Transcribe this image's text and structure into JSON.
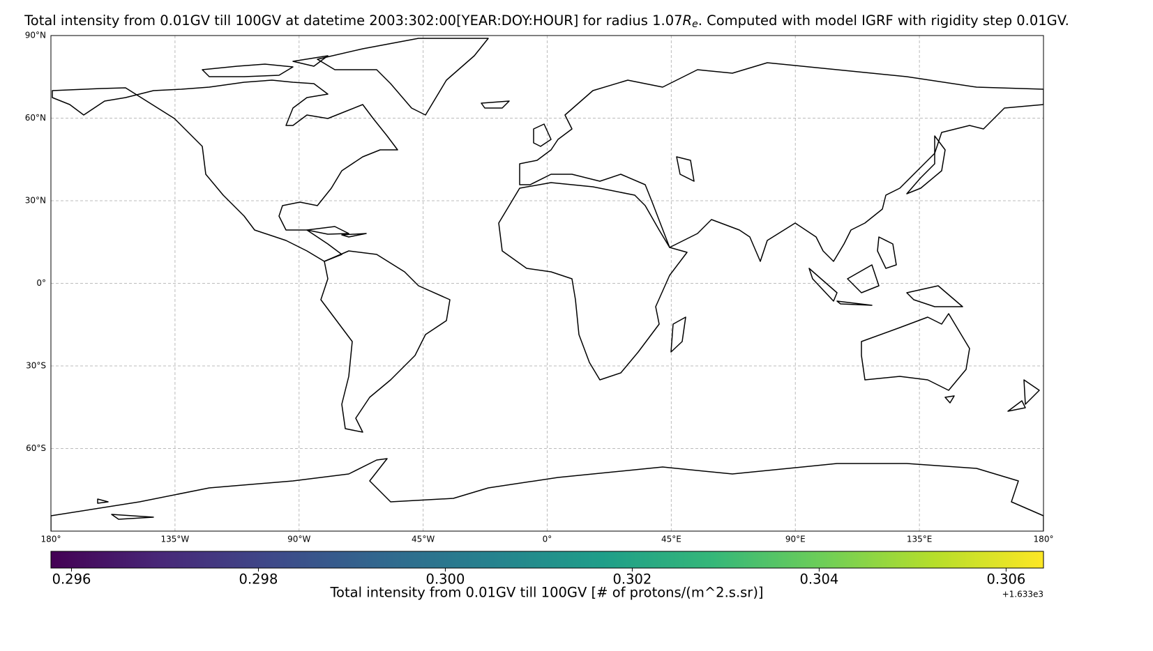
{
  "map": {
    "title": {
      "before": "Total intensity from 0.01GV till 100GV at datetime 2003:302:00[YEAR:DOY:HOUR] for radius 1.07",
      "symbol": "R",
      "subscript": "e",
      "after": ". Computed with model IGRF with rigidity step 0.01GV."
    },
    "xlim": [
      -180,
      180
    ],
    "ylim": [
      -90,
      90
    ],
    "xticks": [
      {
        "value": -180,
        "label": "180°"
      },
      {
        "value": -135,
        "label": "135°W"
      },
      {
        "value": -90,
        "label": "90°W"
      },
      {
        "value": -45,
        "label": "45°W"
      },
      {
        "value": 0,
        "label": "0°"
      },
      {
        "value": 45,
        "label": "45°E"
      },
      {
        "value": 90,
        "label": "90°E"
      },
      {
        "value": 135,
        "label": "135°E"
      },
      {
        "value": 180,
        "label": "180°"
      }
    ],
    "yticks": [
      {
        "value": 90,
        "label": "90°N"
      },
      {
        "value": 60,
        "label": "60°N"
      },
      {
        "value": 30,
        "label": "30°N"
      },
      {
        "value": 0,
        "label": "0°"
      },
      {
        "value": -30,
        "label": "30°S"
      },
      {
        "value": -60,
        "label": "60°S"
      }
    ],
    "grid": true,
    "colorbar": {
      "colormap": "viridis",
      "label": "Total intensity from 0.01GV till 100GV [# of protons/(m^2.s.sr)]",
      "offset_label": "+1.633e3",
      "lim": [
        0.29578,
        0.3064
      ],
      "ticks": [
        0.296,
        0.298,
        {
          "value": 0.3,
          "label": "0.300"
        },
        0.302,
        0.304,
        0.306
      ]
    }
  }
}
